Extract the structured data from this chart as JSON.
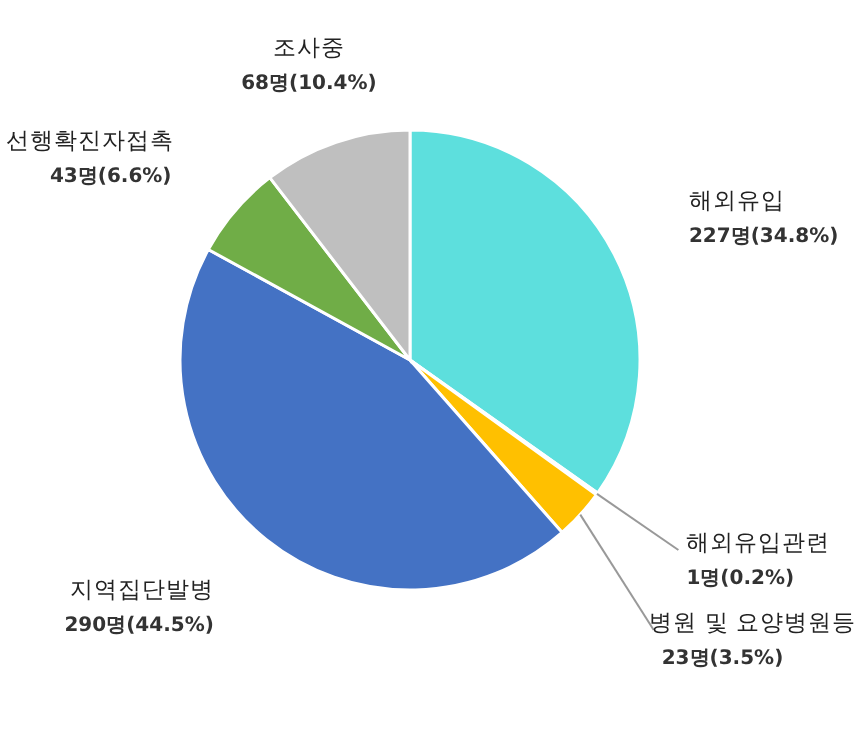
{
  "chart_data": {
    "type": "pie",
    "categories": [
      "해외유입",
      "해외유입관련",
      "병원 및 요양병원등",
      "지역집단발병",
      "선행확진자접촉",
      "조사중"
    ],
    "values": [
      227,
      1,
      23,
      290,
      43,
      68
    ],
    "value_labels": [
      "227명(34.8%)",
      "1명(0.2%)",
      "23명(3.5%)",
      "290명(44.5%)",
      "43명(6.6%)",
      "68명(10.4%)"
    ],
    "colors": [
      "#5ddfdd",
      "#ed7d31",
      "#ffc000",
      "#4472c4",
      "#70ad47",
      "#bfbfbf"
    ]
  }
}
